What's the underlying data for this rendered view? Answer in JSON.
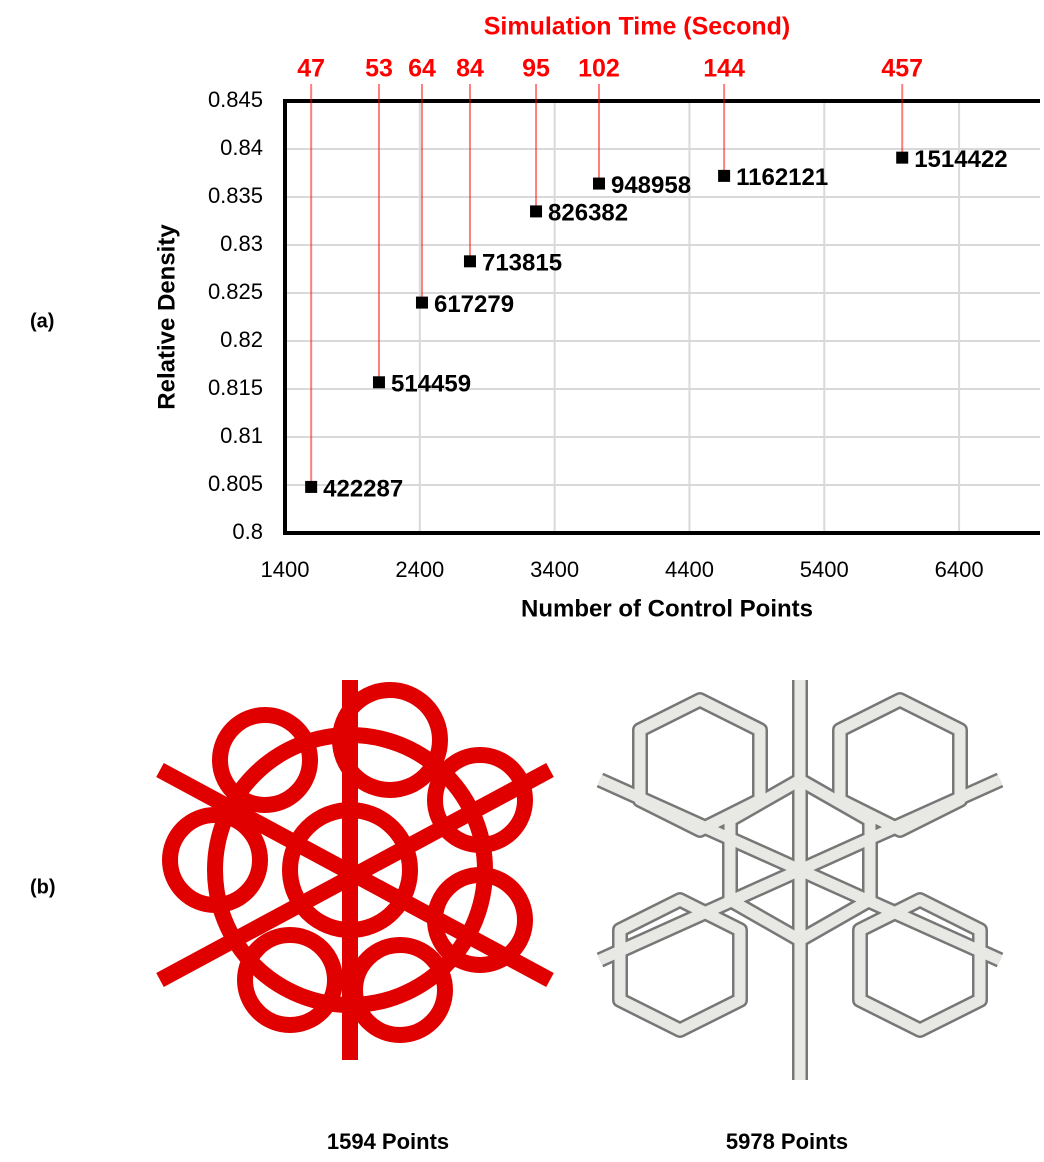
{
  "chart_data": {
    "type": "scatter",
    "title": "Simulation Time (Second)",
    "x_label": "Number of Control Points",
    "y_label": "Relative Density",
    "x": [
      1594,
      2097,
      2416,
      2772,
      3262,
      3729,
      4657,
      5978
    ],
    "values": [
      0.8048,
      0.8157,
      0.824,
      0.8283,
      0.8335,
      0.8364,
      0.8372,
      0.8391
    ],
    "point_labels": [
      422287,
      514459,
      617279,
      713815,
      826382,
      948958,
      1162121,
      1514422
    ],
    "sim_time": [
      47,
      53,
      64,
      84,
      95,
      102,
      144,
      457
    ],
    "color": "#000000",
    "time_color": "#ff0000",
    "xlim": [
      1400,
      7000
    ],
    "ylim": [
      0.8,
      0.845
    ],
    "xticks": [
      1400,
      2400,
      3400,
      4400,
      5400,
      6400
    ],
    "yticks": [
      0.8,
      0.805,
      0.81,
      0.815,
      0.82,
      0.825,
      0.83,
      0.835,
      0.84,
      0.845
    ],
    "grid": true
  },
  "panel_labels": [
    "(a)",
    "(b)"
  ],
  "captions": [
    "1594 Points",
    "5978 Points"
  ]
}
